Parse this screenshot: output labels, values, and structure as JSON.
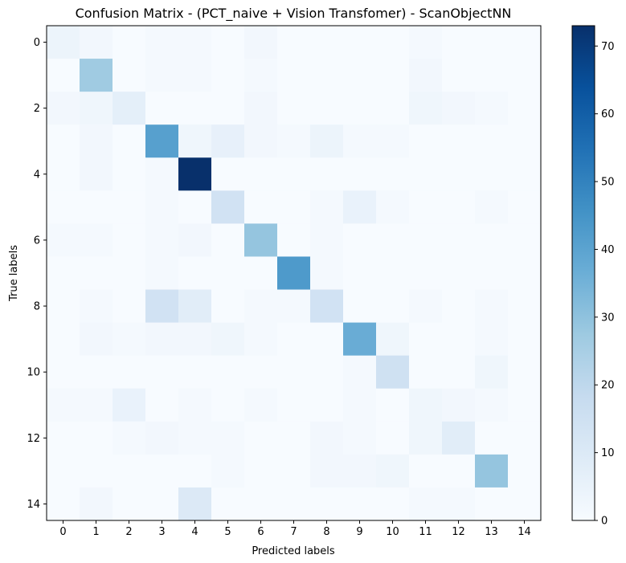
{
  "chart_data": {
    "type": "heatmap",
    "title": "Confusion Matrix - (PCT_naive + Vision Transfomer) - ScanObjectNN",
    "xlabel": "Predicted labels",
    "ylabel": "True labels",
    "colormap": "Blues",
    "vmin": 0,
    "vmax": 73,
    "x_ticks": [
      "0",
      "1",
      "2",
      "3",
      "4",
      "5",
      "6",
      "7",
      "8",
      "9",
      "10",
      "11",
      "12",
      "13",
      "14"
    ],
    "y_ticks": [
      "0",
      "2",
      "4",
      "6",
      "8",
      "10",
      "12",
      "14"
    ],
    "colorbar_ticks": [
      "0",
      "10",
      "20",
      "30",
      "40",
      "50",
      "60",
      "70"
    ],
    "matrix": [
      [
        4,
        2,
        0,
        1,
        1,
        0,
        2,
        0,
        0,
        0,
        0,
        1,
        0,
        0,
        0
      ],
      [
        0,
        27,
        0,
        1,
        1,
        0,
        1,
        0,
        0,
        0,
        0,
        2,
        0,
        0,
        0
      ],
      [
        2,
        3,
        7,
        0,
        0,
        0,
        2,
        0,
        0,
        0,
        0,
        3,
        2,
        1,
        0
      ],
      [
        0,
        2,
        0,
        41,
        3,
        6,
        2,
        1,
        4,
        1,
        1,
        0,
        0,
        0,
        0
      ],
      [
        0,
        2,
        0,
        1,
        73,
        0,
        0,
        0,
        0,
        0,
        0,
        0,
        0,
        0,
        0
      ],
      [
        0,
        0,
        0,
        1,
        0,
        14,
        0,
        0,
        1,
        5,
        1,
        0,
        0,
        1,
        0
      ],
      [
        1,
        1,
        0,
        1,
        2,
        0,
        29,
        0,
        1,
        0,
        0,
        0,
        0,
        0,
        0
      ],
      [
        0,
        0,
        0,
        1,
        0,
        0,
        0,
        43,
        1,
        0,
        0,
        0,
        0,
        0,
        0
      ],
      [
        0,
        1,
        0,
        14,
        8,
        0,
        1,
        1,
        14,
        0,
        0,
        1,
        0,
        1,
        0
      ],
      [
        0,
        2,
        1,
        2,
        2,
        3,
        1,
        0,
        0,
        37,
        3,
        0,
        0,
        1,
        0
      ],
      [
        0,
        0,
        0,
        0,
        0,
        0,
        0,
        0,
        0,
        1,
        15,
        0,
        0,
        3,
        0
      ],
      [
        1,
        1,
        5,
        0,
        1,
        0,
        1,
        0,
        0,
        1,
        0,
        3,
        2,
        1,
        0
      ],
      [
        0,
        0,
        1,
        2,
        1,
        1,
        0,
        0,
        2,
        1,
        0,
        3,
        8,
        0,
        0
      ],
      [
        0,
        0,
        0,
        0,
        0,
        1,
        0,
        0,
        2,
        2,
        3,
        0,
        0,
        29,
        0
      ],
      [
        0,
        2,
        0,
        0,
        10,
        0,
        0,
        0,
        0,
        0,
        0,
        1,
        1,
        0,
        0
      ]
    ]
  }
}
